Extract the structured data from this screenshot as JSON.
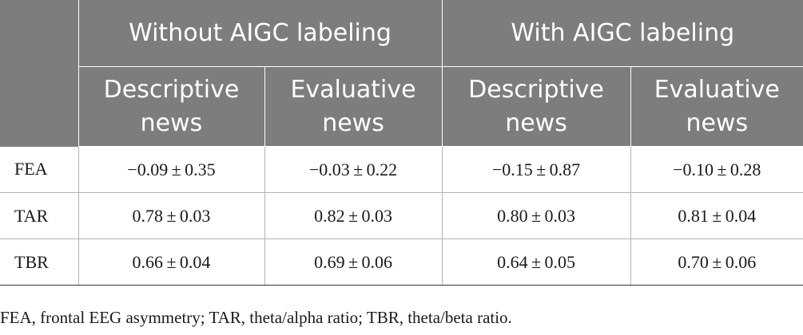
{
  "table": {
    "group_headers": [
      "Without AIGC labeling",
      "With AIGC labeling"
    ],
    "sub_headers": [
      "Descriptive news",
      "Evaluative news",
      "Descriptive news",
      "Evaluative news"
    ],
    "rows": [
      {
        "label": "FEA",
        "cells": [
          "−0.09 ± 0.35",
          "−0.03 ± 0.22",
          "−0.15 ± 0.87",
          "−0.10 ± 0.28"
        ]
      },
      {
        "label": "TAR",
        "cells": [
          "0.78 ± 0.03",
          "0.82 ± 0.03",
          "0.80 ± 0.03",
          "0.81 ± 0.04"
        ]
      },
      {
        "label": "TBR",
        "cells": [
          "0.66 ± 0.04",
          "0.69 ± 0.06",
          "0.64 ± 0.05",
          "0.70 ± 0.06"
        ]
      }
    ]
  },
  "footnote": "FEA, frontal EEG asymmetry; TAR, theta/alpha ratio; TBR, theta/beta ratio.",
  "colors": {
    "header_bg": "#7d7d7d",
    "header_text": "#ffffff",
    "body_text": "#1a1a1a"
  }
}
